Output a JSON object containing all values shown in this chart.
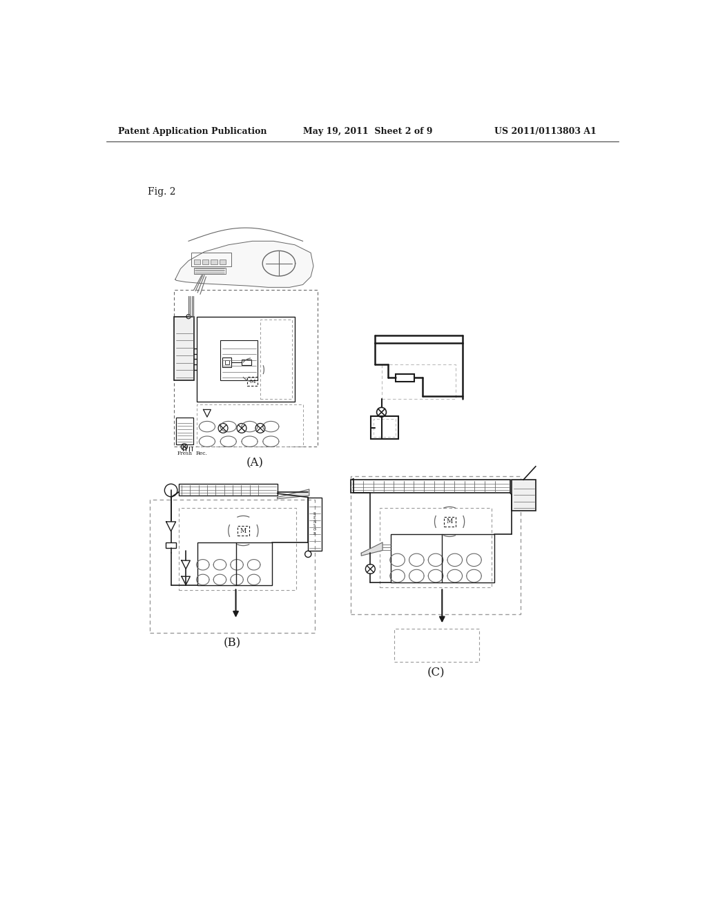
{
  "header_left": "Patent Application Publication",
  "header_middle": "May 19, 2011  Sheet 2 of 9",
  "header_right": "US 2011/0113803 A1",
  "fig_label": "Fig. 2",
  "label_A": "(A)",
  "label_B": "(B)",
  "label_C": "(C)",
  "bg_color": "#ffffff",
  "line_color": "#1a1a1a",
  "gray_line": "#666666",
  "med_gray": "#999999",
  "light_gray": "#bbbbbb"
}
